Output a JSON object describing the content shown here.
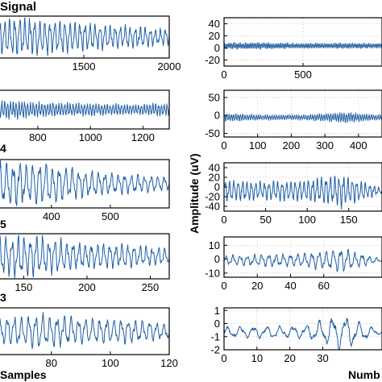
{
  "figure": {
    "left_title": "Signal",
    "left_xlabel": "Samples",
    "right_ylabel": "Amplitude (uV)",
    "right_xlabel": "Numb",
    "left_panel_labels": [
      "",
      "",
      "4",
      "5",
      "3"
    ]
  },
  "colors": {
    "trace": "#1f5fa6",
    "axis": "#000000",
    "grid": "#d6d6d6"
  },
  "chart_data": [
    {
      "type": "line",
      "panel": "left-1",
      "title": "Signal",
      "xlim": [
        1000,
        2000
      ],
      "xticks": [
        1500,
        2000
      ],
      "series": [
        {
          "amplitude_profile": [
            1.0,
            0.95,
            0.7,
            0.55,
            0.4
          ],
          "cycles": 34,
          "seed": 1
        }
      ]
    },
    {
      "type": "line",
      "panel": "left-2",
      "xlim": [
        650,
        1300
      ],
      "xticks": [
        800,
        1000,
        1200
      ],
      "series": [
        {
          "amplitude_profile": [
            0.55,
            0.4,
            0.35,
            0.3,
            0.35
          ],
          "cycles": 60,
          "seed": 2
        }
      ]
    },
    {
      "type": "line",
      "panel": "left-3",
      "xlim": [
        310,
        600
      ],
      "xticks": [
        400,
        500
      ],
      "series": [
        {
          "amplitude_profile": [
            1.0,
            0.9,
            0.6,
            0.45,
            0.3
          ],
          "cycles": 26,
          "seed": 3
        }
      ]
    },
    {
      "type": "line",
      "panel": "left-4",
      "xlim": [
        130,
        265
      ],
      "xticks": [
        150,
        200,
        250
      ],
      "series": [
        {
          "amplitude_profile": [
            1.0,
            0.9,
            0.6,
            0.55,
            0.35
          ],
          "cycles": 28,
          "seed": 4
        }
      ]
    },
    {
      "type": "line",
      "panel": "left-5",
      "xlabel": "Samples",
      "xlim": [
        62,
        120
      ],
      "xticks": [
        80,
        100,
        120
      ],
      "series": [
        {
          "amplitude_profile": [
            0.6,
            0.8,
            0.6,
            0.55,
            0.35
          ],
          "cycles": 24,
          "seed": 5
        }
      ]
    },
    {
      "type": "line",
      "panel": "right-1",
      "xlim": [
        0,
        1000
      ],
      "ylim": [
        -30,
        50
      ],
      "xticks": [
        0,
        500
      ],
      "yticks": [
        40,
        20,
        0,
        -20
      ],
      "series": [
        {
          "amplitude_profile": [
            0.15,
            0.15,
            0.12,
            0.12,
            0.12
          ],
          "cycles": 90,
          "seed": 6
        }
      ]
    },
    {
      "type": "line",
      "panel": "right-2",
      "xlim": [
        0,
        470
      ],
      "ylim": [
        -60,
        70
      ],
      "xticks": [
        0,
        100,
        200,
        300,
        400
      ],
      "yticks": [
        50,
        0,
        -50
      ],
      "series": [
        {
          "amplitude_profile": [
            0.2,
            0.12,
            0.12,
            0.25,
            0.12
          ],
          "cycles": 70,
          "seed": 7
        }
      ]
    },
    {
      "type": "line",
      "panel": "right-3",
      "ylabel": "Amplitude (uV)",
      "xlim": [
        0,
        190
      ],
      "ylim": [
        -50,
        50
      ],
      "xticks": [
        0,
        50,
        100,
        150
      ],
      "yticks": [
        40,
        20,
        0,
        -20,
        -40
      ],
      "series": [
        {
          "amplitude_profile": [
            0.5,
            0.4,
            0.45,
            0.7,
            0.1
          ],
          "cycles": 36,
          "seed": 8
        }
      ]
    },
    {
      "type": "line",
      "panel": "right-4",
      "xlim": [
        0,
        95
      ],
      "ylim": [
        -13,
        16
      ],
      "xticks": [
        0,
        20,
        40,
        60
      ],
      "yticks": [
        10,
        0,
        -10
      ],
      "series": [
        {
          "amplitude_profile": [
            0.25,
            0.3,
            0.35,
            0.6,
            0.05
          ],
          "cycles": 22,
          "seed": 9
        }
      ]
    },
    {
      "type": "line",
      "panel": "right-5",
      "xlabel": "Numb",
      "xlim": [
        0,
        48
      ],
      "ylim": [
        -2,
        1.2
      ],
      "xticks": [
        0,
        10,
        20,
        30
      ],
      "yticks": [
        1,
        0,
        -1,
        -2
      ],
      "series": [
        {
          "amplitude_profile": [
            0.25,
            0.3,
            0.3,
            0.9,
            0.05
          ],
          "cycles": 12,
          "seed": 10
        }
      ]
    }
  ]
}
